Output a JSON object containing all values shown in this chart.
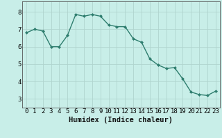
{
  "x": [
    0,
    1,
    2,
    3,
    4,
    5,
    6,
    7,
    8,
    9,
    10,
    11,
    12,
    13,
    14,
    15,
    16,
    17,
    18,
    19,
    20,
    21,
    22,
    23
  ],
  "y": [
    6.8,
    7.0,
    6.9,
    6.0,
    6.0,
    6.65,
    7.85,
    7.75,
    7.85,
    7.75,
    7.25,
    7.15,
    7.15,
    6.45,
    6.25,
    5.3,
    4.95,
    4.75,
    4.8,
    4.15,
    3.4,
    3.25,
    3.2,
    3.45
  ],
  "line_color": "#2e7d6e",
  "marker": "D",
  "marker_size": 2,
  "bg_color": "#c8eee8",
  "grid_color": "#b0d4ce",
  "xlabel": "Humidex (Indice chaleur)",
  "xlabel_fontsize": 7.5,
  "tick_fontsize": 6.5,
  "ylim": [
    2.5,
    8.6
  ],
  "xlim": [
    -0.5,
    23.5
  ],
  "yticks": [
    3,
    4,
    5,
    6,
    7,
    8
  ],
  "xticks": [
    0,
    1,
    2,
    3,
    4,
    5,
    6,
    7,
    8,
    9,
    10,
    11,
    12,
    13,
    14,
    15,
    16,
    17,
    18,
    19,
    20,
    21,
    22,
    23
  ]
}
